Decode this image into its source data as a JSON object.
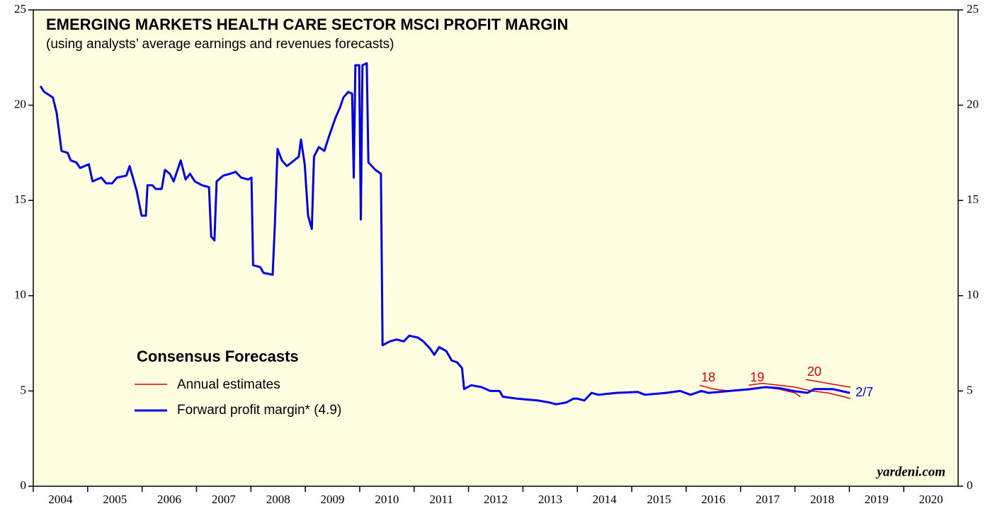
{
  "chart_data": {
    "type": "line",
    "title": "EMERGING MARKETS HEALTH CARE SECTOR MSCI PROFIT MARGIN",
    "subtitle": "(using analysts’ average earnings and revenues forecasts)",
    "legend_title": "Consensus Forecasts",
    "end_label": "2/7",
    "source": "yardeni.com",
    "xlim": [
      2004,
      2021
    ],
    "ylim": [
      0,
      25
    ],
    "yticks": [
      0,
      5,
      10,
      15,
      20,
      25
    ],
    "xticks": [
      2004,
      2005,
      2006,
      2007,
      2008,
      2009,
      2010,
      2011,
      2012,
      2013,
      2014,
      2015,
      2016,
      2017,
      2018,
      2019,
      2020
    ],
    "right_axis": true,
    "background": "#fffee0",
    "series": [
      {
        "name": "Forward profit margin* (4.9)",
        "color": "#0000ee",
        "x": [
          2004.13,
          2004.2,
          2004.36,
          2004.43,
          2004.52,
          2004.63,
          2004.69,
          2004.79,
          2004.86,
          2005.02,
          2005.09,
          2005.25,
          2005.34,
          2005.45,
          2005.54,
          2005.71,
          2005.77,
          2005.9,
          2005.99,
          2006.07,
          2006.1,
          2006.19,
          2006.25,
          2006.36,
          2006.42,
          2006.51,
          2006.58,
          2006.71,
          2006.8,
          2006.88,
          2006.97,
          2007.1,
          2007.23,
          2007.27,
          2007.33,
          2007.37,
          2007.49,
          2007.62,
          2007.72,
          2007.82,
          2007.95,
          2008.01,
          2008.04,
          2008.17,
          2008.23,
          2008.4,
          2008.44,
          2008.49,
          2008.57,
          2008.66,
          2008.75,
          2008.88,
          2008.92,
          2008.99,
          2009.05,
          2009.12,
          2009.16,
          2009.25,
          2009.35,
          2009.44,
          2009.55,
          2009.64,
          2009.7,
          2009.79,
          2009.86,
          2009.89,
          2009.92,
          2009.99,
          2010.02,
          2010.05,
          2010.13,
          2010.16,
          2010.29,
          2010.39,
          2010.42,
          2010.55,
          2010.68,
          2010.81,
          2010.91,
          2011.07,
          2011.17,
          2011.3,
          2011.37,
          2011.46,
          2011.59,
          2011.69,
          2011.79,
          2011.88,
          2011.92,
          2012.05,
          2012.24,
          2012.4,
          2012.57,
          2012.63,
          2012.89,
          2013.28,
          2013.48,
          2013.61,
          2013.8,
          2013.93,
          2014.0,
          2014.13,
          2014.26,
          2014.39,
          2014.72,
          2015.11,
          2015.24,
          2015.63,
          2015.89,
          2016.08,
          2016.28,
          2016.41,
          2016.8,
          2017.19,
          2017.45,
          2017.71,
          2017.97,
          2018.23,
          2018.36,
          2018.69,
          2019.01
        ],
        "values": [
          21.0,
          20.7,
          20.4,
          19.6,
          17.6,
          17.5,
          17.1,
          17.0,
          16.7,
          16.9,
          16.0,
          16.2,
          15.9,
          15.9,
          16.2,
          16.3,
          16.8,
          15.5,
          14.2,
          14.2,
          15.8,
          15.8,
          15.6,
          15.6,
          16.6,
          16.4,
          16.0,
          17.1,
          16.1,
          16.4,
          16.0,
          15.8,
          15.7,
          13.1,
          12.9,
          16.0,
          16.3,
          16.4,
          16.5,
          16.2,
          16.1,
          16.2,
          11.6,
          11.5,
          11.2,
          11.1,
          13.7,
          17.7,
          17.1,
          16.8,
          17.0,
          17.3,
          18.2,
          16.9,
          14.2,
          13.5,
          17.3,
          17.8,
          17.6,
          18.4,
          19.3,
          19.9,
          20.4,
          20.7,
          20.6,
          16.2,
          22.1,
          22.1,
          14.0,
          22.1,
          22.2,
          17.0,
          16.6,
          16.4,
          7.4,
          7.6,
          7.7,
          7.6,
          7.9,
          7.8,
          7.6,
          7.2,
          6.9,
          7.3,
          7.1,
          6.6,
          6.5,
          6.2,
          5.1,
          5.3,
          5.2,
          5.0,
          5.0,
          4.7,
          4.6,
          4.5,
          4.4,
          4.3,
          4.4,
          4.6,
          4.6,
          4.5,
          4.9,
          4.8,
          4.9,
          4.95,
          4.8,
          4.9,
          5.0,
          4.8,
          5.0,
          4.9,
          5.0,
          5.1,
          5.2,
          5.15,
          5.0,
          4.9,
          5.1,
          5.1,
          4.9
        ]
      }
    ],
    "estimates": {
      "name": "Annual estimates",
      "color": "#e00000",
      "lines": [
        {
          "label": "18",
          "x": [
            2016.25,
            2016.5,
            2016.8,
            2017.1,
            2017.4,
            2017.7,
            2018.0,
            2018.1
          ],
          "values": [
            5.3,
            5.1,
            5.0,
            5.1,
            5.2,
            5.1,
            4.9,
            4.7
          ]
        },
        {
          "label": "19",
          "x": [
            2017.15,
            2017.4,
            2017.7,
            2018.0,
            2018.3,
            2018.6,
            2018.9,
            2019.02
          ],
          "values": [
            5.3,
            5.4,
            5.3,
            5.2,
            5.0,
            4.9,
            4.7,
            4.6
          ]
        },
        {
          "label": "20",
          "x": [
            2018.2,
            2018.4,
            2018.6,
            2018.8,
            2019.02
          ],
          "values": [
            5.6,
            5.5,
            5.4,
            5.3,
            5.2
          ]
        }
      ]
    }
  }
}
